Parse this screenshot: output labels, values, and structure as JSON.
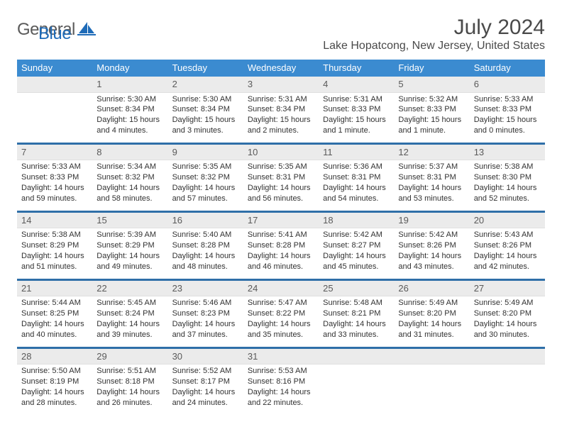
{
  "logo": {
    "text1": "General",
    "text2": "Blue"
  },
  "title": "July 2024",
  "location": "Lake Hopatcong, New Jersey, United States",
  "colors": {
    "header_bg": "#3b8bd0",
    "header_text": "#ffffff",
    "daynum_bg": "#ebebeb",
    "daynum_text": "#5a5a5a",
    "body_text": "#323232",
    "divider": "#2f6fa8"
  },
  "day_names": [
    "Sunday",
    "Monday",
    "Tuesday",
    "Wednesday",
    "Thursday",
    "Friday",
    "Saturday"
  ],
  "weeks": [
    [
      {
        "blank": true
      },
      {
        "num": "1",
        "sunrise": "Sunrise: 5:30 AM",
        "sunset": "Sunset: 8:34 PM",
        "daylight": "Daylight: 15 hours and 4 minutes."
      },
      {
        "num": "2",
        "sunrise": "Sunrise: 5:30 AM",
        "sunset": "Sunset: 8:34 PM",
        "daylight": "Daylight: 15 hours and 3 minutes."
      },
      {
        "num": "3",
        "sunrise": "Sunrise: 5:31 AM",
        "sunset": "Sunset: 8:34 PM",
        "daylight": "Daylight: 15 hours and 2 minutes."
      },
      {
        "num": "4",
        "sunrise": "Sunrise: 5:31 AM",
        "sunset": "Sunset: 8:33 PM",
        "daylight": "Daylight: 15 hours and 1 minute."
      },
      {
        "num": "5",
        "sunrise": "Sunrise: 5:32 AM",
        "sunset": "Sunset: 8:33 PM",
        "daylight": "Daylight: 15 hours and 1 minute."
      },
      {
        "num": "6",
        "sunrise": "Sunrise: 5:33 AM",
        "sunset": "Sunset: 8:33 PM",
        "daylight": "Daylight: 15 hours and 0 minutes."
      }
    ],
    [
      {
        "num": "7",
        "sunrise": "Sunrise: 5:33 AM",
        "sunset": "Sunset: 8:33 PM",
        "daylight": "Daylight: 14 hours and 59 minutes."
      },
      {
        "num": "8",
        "sunrise": "Sunrise: 5:34 AM",
        "sunset": "Sunset: 8:32 PM",
        "daylight": "Daylight: 14 hours and 58 minutes."
      },
      {
        "num": "9",
        "sunrise": "Sunrise: 5:35 AM",
        "sunset": "Sunset: 8:32 PM",
        "daylight": "Daylight: 14 hours and 57 minutes."
      },
      {
        "num": "10",
        "sunrise": "Sunrise: 5:35 AM",
        "sunset": "Sunset: 8:31 PM",
        "daylight": "Daylight: 14 hours and 56 minutes."
      },
      {
        "num": "11",
        "sunrise": "Sunrise: 5:36 AM",
        "sunset": "Sunset: 8:31 PM",
        "daylight": "Daylight: 14 hours and 54 minutes."
      },
      {
        "num": "12",
        "sunrise": "Sunrise: 5:37 AM",
        "sunset": "Sunset: 8:31 PM",
        "daylight": "Daylight: 14 hours and 53 minutes."
      },
      {
        "num": "13",
        "sunrise": "Sunrise: 5:38 AM",
        "sunset": "Sunset: 8:30 PM",
        "daylight": "Daylight: 14 hours and 52 minutes."
      }
    ],
    [
      {
        "num": "14",
        "sunrise": "Sunrise: 5:38 AM",
        "sunset": "Sunset: 8:29 PM",
        "daylight": "Daylight: 14 hours and 51 minutes."
      },
      {
        "num": "15",
        "sunrise": "Sunrise: 5:39 AM",
        "sunset": "Sunset: 8:29 PM",
        "daylight": "Daylight: 14 hours and 49 minutes."
      },
      {
        "num": "16",
        "sunrise": "Sunrise: 5:40 AM",
        "sunset": "Sunset: 8:28 PM",
        "daylight": "Daylight: 14 hours and 48 minutes."
      },
      {
        "num": "17",
        "sunrise": "Sunrise: 5:41 AM",
        "sunset": "Sunset: 8:28 PM",
        "daylight": "Daylight: 14 hours and 46 minutes."
      },
      {
        "num": "18",
        "sunrise": "Sunrise: 5:42 AM",
        "sunset": "Sunset: 8:27 PM",
        "daylight": "Daylight: 14 hours and 45 minutes."
      },
      {
        "num": "19",
        "sunrise": "Sunrise: 5:42 AM",
        "sunset": "Sunset: 8:26 PM",
        "daylight": "Daylight: 14 hours and 43 minutes."
      },
      {
        "num": "20",
        "sunrise": "Sunrise: 5:43 AM",
        "sunset": "Sunset: 8:26 PM",
        "daylight": "Daylight: 14 hours and 42 minutes."
      }
    ],
    [
      {
        "num": "21",
        "sunrise": "Sunrise: 5:44 AM",
        "sunset": "Sunset: 8:25 PM",
        "daylight": "Daylight: 14 hours and 40 minutes."
      },
      {
        "num": "22",
        "sunrise": "Sunrise: 5:45 AM",
        "sunset": "Sunset: 8:24 PM",
        "daylight": "Daylight: 14 hours and 39 minutes."
      },
      {
        "num": "23",
        "sunrise": "Sunrise: 5:46 AM",
        "sunset": "Sunset: 8:23 PM",
        "daylight": "Daylight: 14 hours and 37 minutes."
      },
      {
        "num": "24",
        "sunrise": "Sunrise: 5:47 AM",
        "sunset": "Sunset: 8:22 PM",
        "daylight": "Daylight: 14 hours and 35 minutes."
      },
      {
        "num": "25",
        "sunrise": "Sunrise: 5:48 AM",
        "sunset": "Sunset: 8:21 PM",
        "daylight": "Daylight: 14 hours and 33 minutes."
      },
      {
        "num": "26",
        "sunrise": "Sunrise: 5:49 AM",
        "sunset": "Sunset: 8:20 PM",
        "daylight": "Daylight: 14 hours and 31 minutes."
      },
      {
        "num": "27",
        "sunrise": "Sunrise: 5:49 AM",
        "sunset": "Sunset: 8:20 PM",
        "daylight": "Daylight: 14 hours and 30 minutes."
      }
    ],
    [
      {
        "num": "28",
        "sunrise": "Sunrise: 5:50 AM",
        "sunset": "Sunset: 8:19 PM",
        "daylight": "Daylight: 14 hours and 28 minutes."
      },
      {
        "num": "29",
        "sunrise": "Sunrise: 5:51 AM",
        "sunset": "Sunset: 8:18 PM",
        "daylight": "Daylight: 14 hours and 26 minutes."
      },
      {
        "num": "30",
        "sunrise": "Sunrise: 5:52 AM",
        "sunset": "Sunset: 8:17 PM",
        "daylight": "Daylight: 14 hours and 24 minutes."
      },
      {
        "num": "31",
        "sunrise": "Sunrise: 5:53 AM",
        "sunset": "Sunset: 8:16 PM",
        "daylight": "Daylight: 14 hours and 22 minutes."
      },
      {
        "blank": true
      },
      {
        "blank": true
      },
      {
        "blank": true
      }
    ]
  ]
}
